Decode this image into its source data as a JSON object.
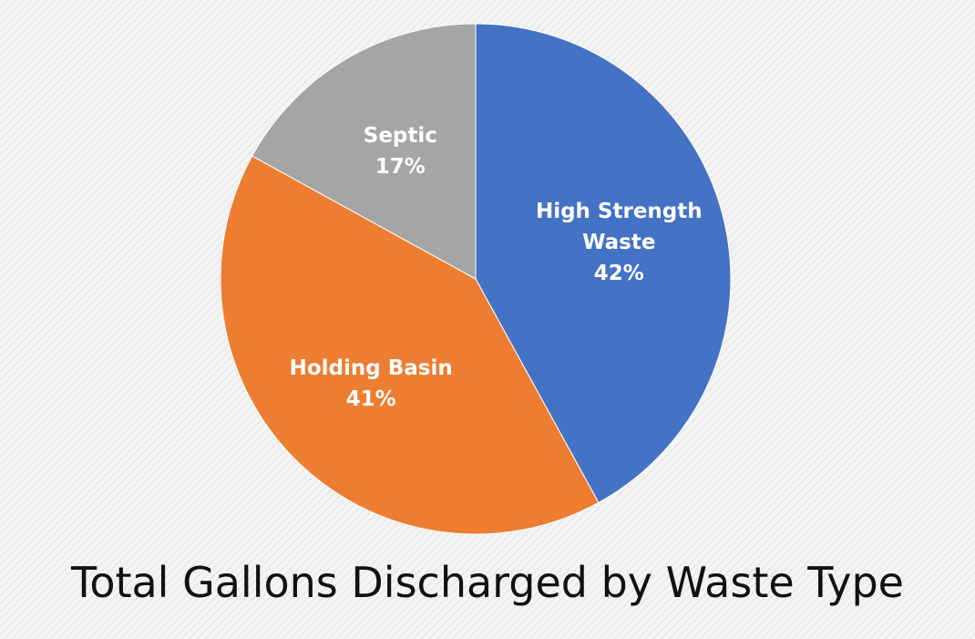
{
  "chart_data": {
    "type": "pie",
    "title": "Total Gallons Discharged by Waste Type",
    "categories": [
      "High Strength Waste",
      "Holding Basin",
      "Septic"
    ],
    "values": [
      42,
      41,
      17
    ],
    "value_labels": [
      "42%",
      "41%",
      "17%"
    ],
    "colors": [
      "#4472c4",
      "#ed7d31",
      "#a5a5a5"
    ]
  }
}
